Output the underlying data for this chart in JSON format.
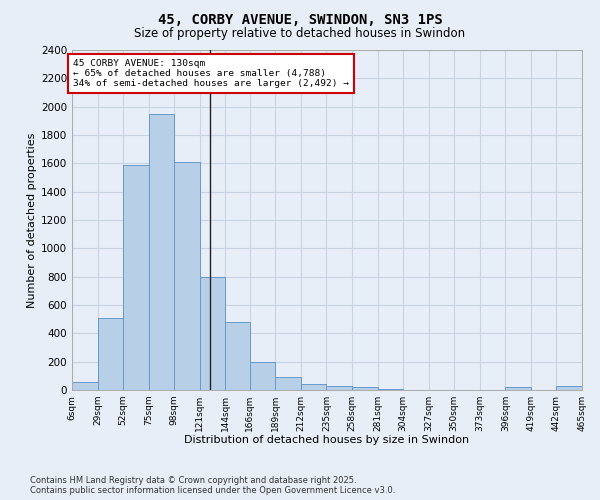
{
  "title": "45, CORBY AVENUE, SWINDON, SN3 1PS",
  "subtitle": "Size of property relative to detached houses in Swindon",
  "xlabel": "Distribution of detached houses by size in Swindon",
  "ylabel": "Number of detached properties",
  "footer_line1": "Contains HM Land Registry data © Crown copyright and database right 2025.",
  "footer_line2": "Contains public sector information licensed under the Open Government Licence v3.0.",
  "annotation_line1": "45 CORBY AVENUE: 130sqm",
  "annotation_line2": "← 65% of detached houses are smaller (4,788)",
  "annotation_line3": "34% of semi-detached houses are larger (2,492) →",
  "property_sqm": 130,
  "bar_color": "#b8cfe8",
  "bar_edge_color": "#6699cc",
  "grid_color": "#c8d4e4",
  "background_color": "#e8eef8",
  "annotation_box_color": "#ffffff",
  "annotation_box_edge": "#cc0000",
  "vline_color": "#222222",
  "bins": [
    6,
    29,
    52,
    75,
    98,
    121,
    144,
    166,
    189,
    212,
    235,
    258,
    281,
    304,
    327,
    350,
    373,
    396,
    419,
    442,
    465
  ],
  "bar_heights": [
    60,
    510,
    1590,
    1950,
    1610,
    800,
    480,
    200,
    90,
    40,
    30,
    20,
    10,
    0,
    0,
    0,
    0,
    20,
    0,
    25
  ],
  "ylim": [
    0,
    2400
  ],
  "yticks": [
    0,
    200,
    400,
    600,
    800,
    1000,
    1200,
    1400,
    1600,
    1800,
    2000,
    2200,
    2400
  ]
}
